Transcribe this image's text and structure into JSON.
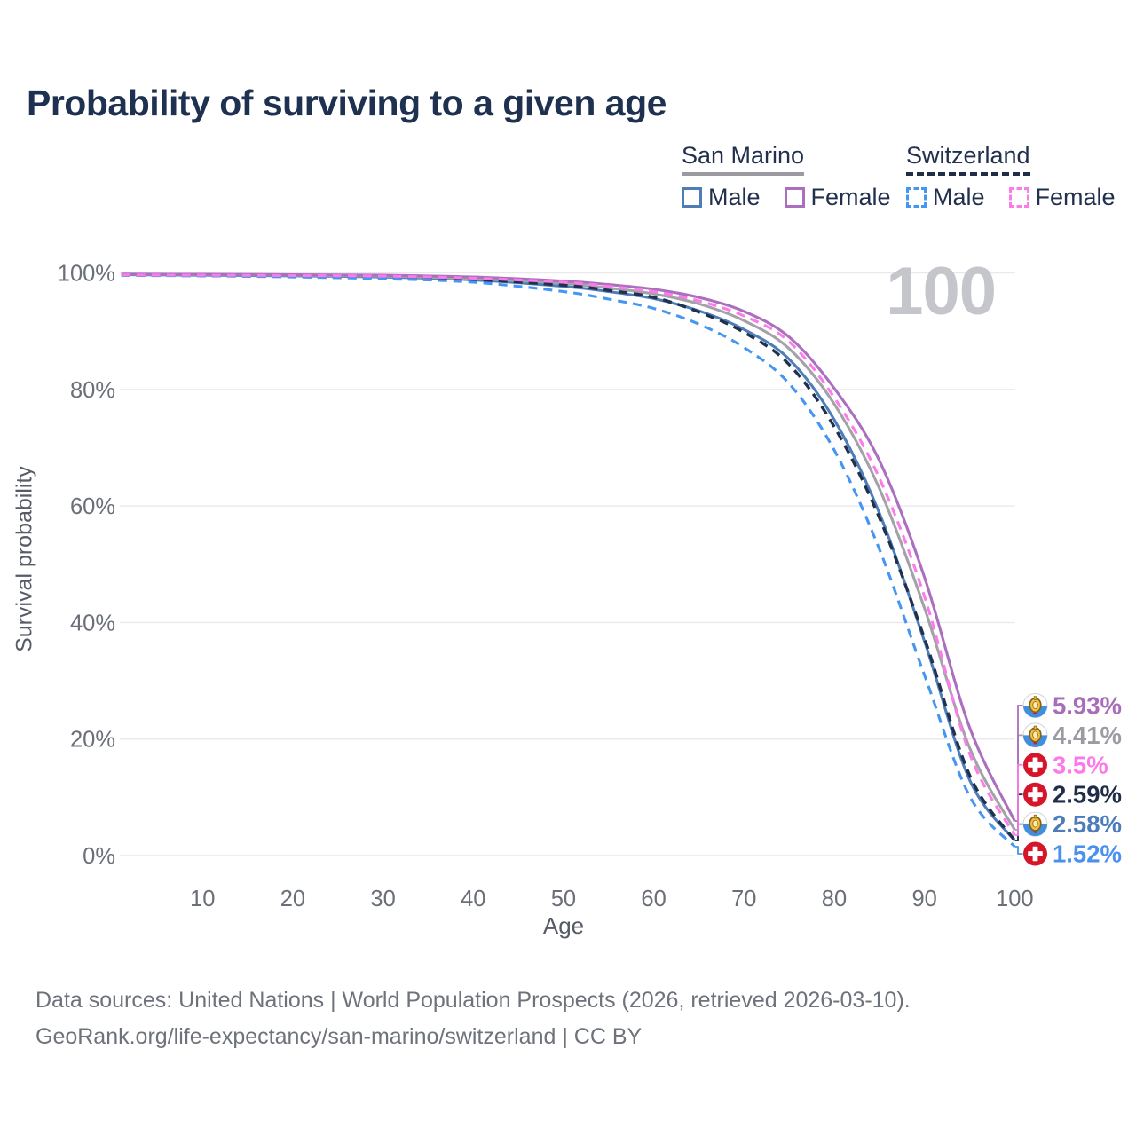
{
  "app": {
    "title": "Probability of surviving to a given age"
  },
  "watermark": "100",
  "legend": {
    "groups": [
      {
        "label": "San Marino",
        "underline_style": "solid",
        "underline_color": "#9a9aa0",
        "items": [
          {
            "label": "Male",
            "series": "sm_male"
          },
          {
            "label": "Female",
            "series": "sm_female"
          }
        ]
      },
      {
        "label": "Switzerland",
        "underline_style": "dashed",
        "underline_color": "#1f2d49",
        "items": [
          {
            "label": "Male",
            "series": "ch_male"
          },
          {
            "label": "Female",
            "series": "ch_female"
          }
        ]
      }
    ]
  },
  "chart_data": {
    "type": "line",
    "title": "Probability of surviving to a given age",
    "xlabel": "Age",
    "ylabel": "Survival probability",
    "age_counter": "100",
    "xlim": [
      1,
      100
    ],
    "ylim": [
      0,
      100
    ],
    "grid": true,
    "x_ticks": [
      10,
      20,
      30,
      40,
      50,
      60,
      70,
      80,
      90,
      100
    ],
    "y_ticks": [
      {
        "value": 0,
        "label": "0%"
      },
      {
        "value": 20,
        "label": "20%"
      },
      {
        "value": 40,
        "label": "40%"
      },
      {
        "value": 60,
        "label": "60%"
      },
      {
        "value": 80,
        "label": "80%"
      },
      {
        "value": 100,
        "label": "100%"
      }
    ],
    "x": [
      1,
      10,
      20,
      30,
      40,
      50,
      55,
      60,
      65,
      70,
      75,
      80,
      85,
      90,
      95,
      100
    ],
    "series": [
      {
        "id": "sm_male",
        "name": "San Marino Male",
        "country": "San Marino",
        "sex": "Male",
        "color": "#4e7db8",
        "label_color": "#4c7cba",
        "dash": "solid",
        "flag": "san-marino",
        "end_value": 2.58,
        "end_label": "2.58%",
        "label_slot": 4,
        "values": [
          99.7,
          99.6,
          99.5,
          99.3,
          98.8,
          97.7,
          96.8,
          95.6,
          93.5,
          90.3,
          85.2,
          74.8,
          58.8,
          36.8,
          13.0,
          2.58
        ]
      },
      {
        "id": "sm_total",
        "name": "San Marino",
        "country": "San Marino",
        "sex": "Both",
        "color": "#a2a2a8",
        "label_color": "#9b9ba1",
        "dash": "solid",
        "flag": "san-marino",
        "end_value": 4.41,
        "end_label": "4.41%",
        "label_slot": 1,
        "values": [
          99.75,
          99.7,
          99.6,
          99.45,
          99.0,
          98.2,
          97.4,
          96.4,
          94.7,
          91.8,
          87.0,
          77.5,
          63.0,
          42.5,
          18.5,
          4.41
        ]
      },
      {
        "id": "sm_female",
        "name": "San Marino Female",
        "country": "San Marino",
        "sex": "Female",
        "color": "#ab6fc0",
        "label_color": "#a76db9",
        "dash": "solid",
        "flag": "san-marino",
        "end_value": 5.93,
        "end_label": "5.93%",
        "label_slot": 0,
        "values": [
          99.8,
          99.75,
          99.7,
          99.6,
          99.3,
          98.6,
          98.0,
          97.2,
          95.8,
          93.4,
          89.0,
          80.2,
          67.8,
          47.8,
          22.0,
          5.93
        ]
      },
      {
        "id": "ch_total",
        "name": "Switzerland",
        "country": "Switzerland",
        "sex": "Both",
        "color": "#20314f",
        "label_color": "#1f2d49",
        "dash": "dashed",
        "flag": "switzerland",
        "end_value": 2.59,
        "end_label": "2.59%",
        "label_slot": 3,
        "values": [
          99.6,
          99.55,
          99.45,
          99.25,
          98.85,
          97.9,
          97.0,
          95.8,
          93.3,
          89.8,
          84.3,
          73.6,
          58.0,
          37.3,
          13.8,
          2.59
        ]
      },
      {
        "id": "ch_male",
        "name": "Switzerland Male",
        "country": "Switzerland",
        "sex": "Male",
        "color": "#4596f2",
        "label_color": "#4a90ee",
        "dash": "dashed",
        "flag": "switzerland",
        "end_value": 1.52,
        "end_label": "1.52%",
        "label_slot": 5,
        "values": [
          99.55,
          99.5,
          99.3,
          99.0,
          98.4,
          96.8,
          95.5,
          93.9,
          91.2,
          87.2,
          81.0,
          69.6,
          52.6,
          31.0,
          10.2,
          1.52
        ]
      },
      {
        "id": "ch_female",
        "name": "Switzerland Female",
        "country": "Switzerland",
        "sex": "Female",
        "color": "#fb7be9",
        "label_color": "#fb79e8",
        "dash": "dashed",
        "flag": "switzerland",
        "end_value": 3.5,
        "end_label": "3.5%",
        "label_slot": 2,
        "values": [
          99.65,
          99.6,
          99.55,
          99.45,
          99.1,
          98.4,
          97.7,
          96.8,
          95.2,
          92.6,
          88.2,
          78.6,
          64.8,
          44.5,
          17.5,
          3.5
        ]
      }
    ],
    "flag_colors": {
      "san_marino_blue": "#3e8ee2",
      "san_marino_crest_gold": "#f2c23c",
      "swiss_red": "#d6152b"
    },
    "grid_color": "#e9e9ec"
  },
  "footer": {
    "line1": "Data sources: United Nations | World Population Prospects (2026, retrieved 2026-03-10).",
    "line2": "GeoRank.org/life-expectancy/san-marino/switzerland | CC BY"
  }
}
